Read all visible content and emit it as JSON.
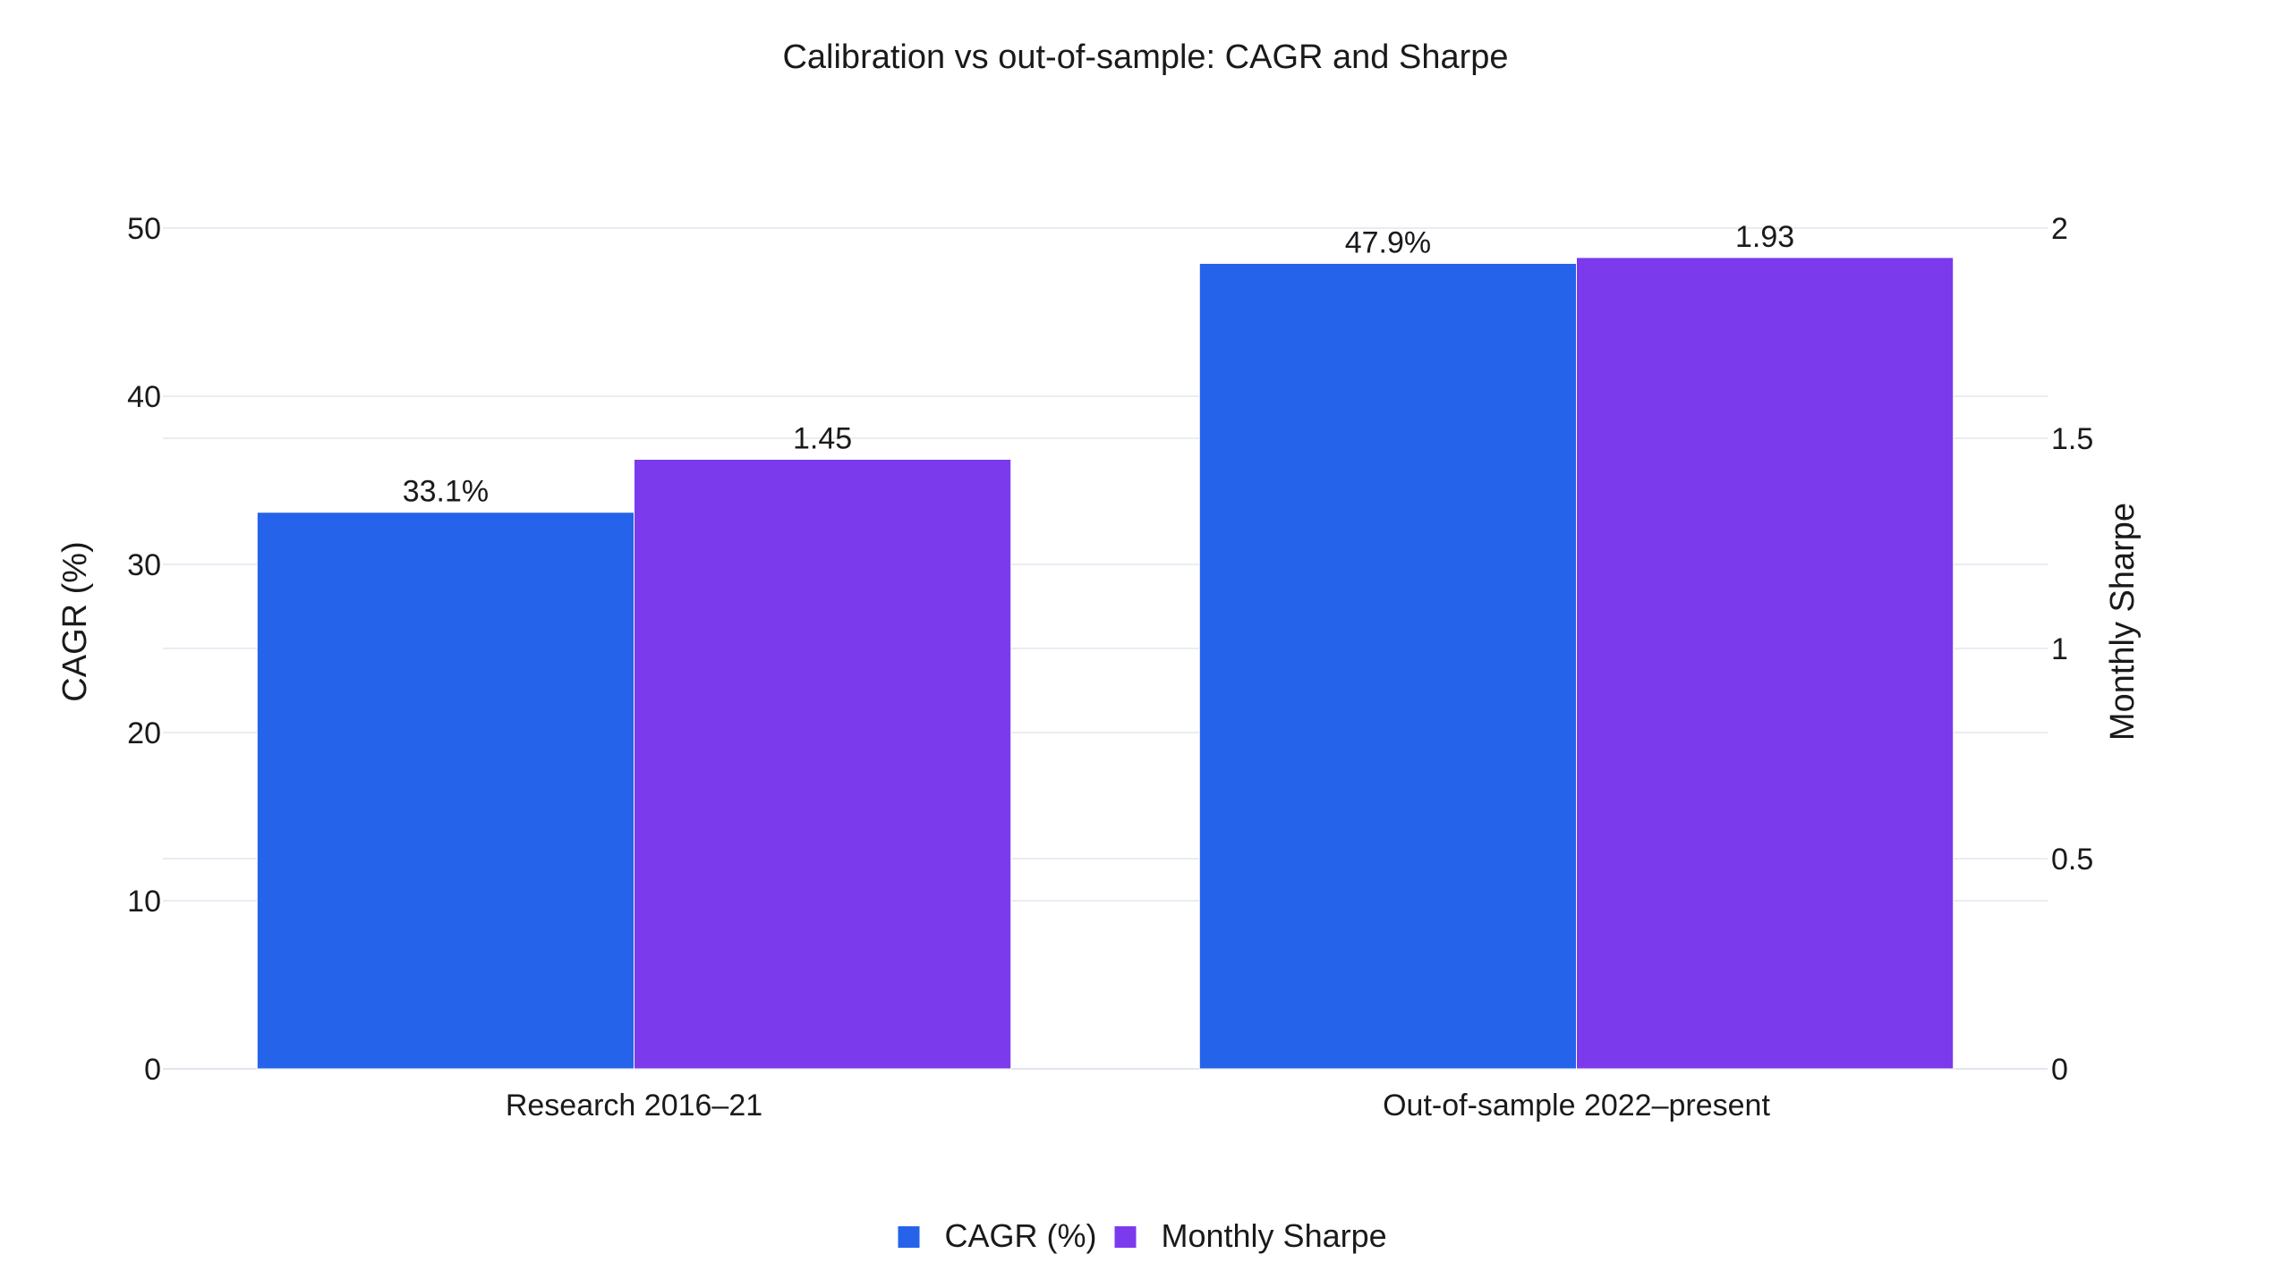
{
  "chart_data": {
    "type": "bar",
    "title": "Calibration vs out-of-sample: CAGR and Sharpe",
    "categories": [
      "Research 2016–21",
      "Out-of-sample 2022–present"
    ],
    "series": [
      {
        "name": "CAGR (%)",
        "axis": "left",
        "values": [
          33.1,
          47.9
        ],
        "labels": [
          "33.1%",
          "47.9%"
        ],
        "color": "#2563eb"
      },
      {
        "name": "Monthly Sharpe",
        "axis": "right",
        "values": [
          1.45,
          1.93
        ],
        "labels": [
          "1.45",
          "1.93"
        ],
        "color": "#7c3aed"
      }
    ],
    "y_left": {
      "label": "CAGR (%)",
      "range": [
        0,
        50
      ],
      "ticks": [
        0,
        10,
        20,
        30,
        40,
        50
      ],
      "tick_labels": [
        "0",
        "10",
        "20",
        "30",
        "40",
        "50"
      ]
    },
    "y_right": {
      "label": "Monthly Sharpe",
      "range": [
        0,
        2
      ],
      "ticks": [
        0,
        0.5,
        1,
        1.5,
        2
      ],
      "tick_labels": [
        "0",
        "0.5",
        "1",
        "1.5",
        "2"
      ]
    },
    "grid": true,
    "legend": {
      "position": "bottom-center"
    }
  }
}
